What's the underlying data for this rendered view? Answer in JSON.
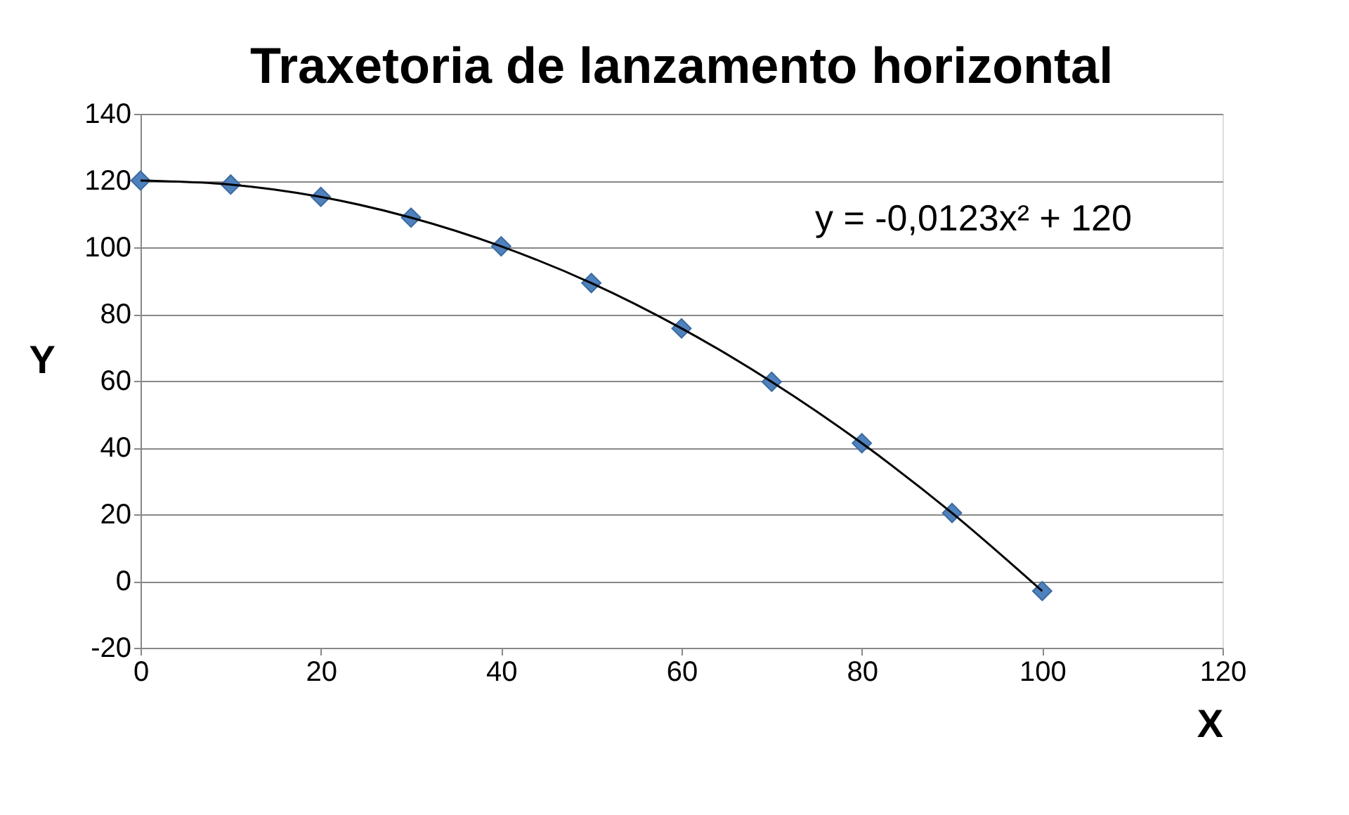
{
  "chart_data": {
    "type": "scatter",
    "title": "Traxetoria de lanzamento horizontal",
    "xlabel": "X",
    "ylabel": "Y",
    "xlim": [
      0,
      120
    ],
    "xticks": [
      0,
      20,
      40,
      60,
      80,
      100,
      120
    ],
    "ylim": [
      -20,
      140
    ],
    "yticks": [
      -20,
      0,
      20,
      40,
      60,
      80,
      100,
      120,
      140
    ],
    "grid": "y",
    "marker": "diamond",
    "annotations": [
      "y = -0,0123x² + 120"
    ],
    "series": [
      {
        "color": "#4f81bd",
        "x": [
          0,
          10,
          20,
          30,
          40,
          50,
          60,
          70,
          80,
          90,
          100
        ],
        "values": [
          120,
          118.8,
          115.1,
          108.9,
          100.3,
          89.3,
          75.7,
          59.7,
          41.3,
          20.4,
          -3
        ]
      },
      {
        "type": "line",
        "color": "#000000",
        "marker": "none",
        "line_style": "solid",
        "x": [
          0,
          10,
          20,
          30,
          40,
          50,
          60,
          70,
          80,
          90,
          100
        ],
        "values": [
          120,
          118.8,
          115.1,
          108.9,
          100.3,
          89.3,
          75.7,
          59.7,
          41.3,
          20.4,
          -3
        ]
      }
    ]
  }
}
